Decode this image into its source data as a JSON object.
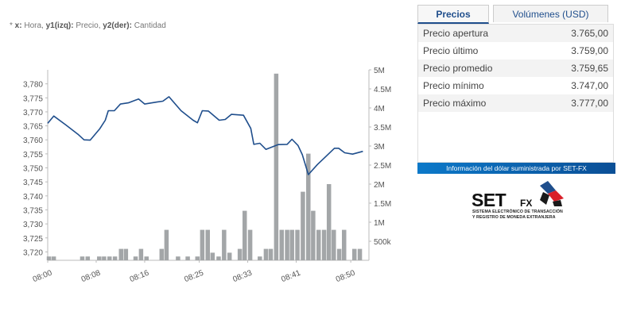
{
  "legend": {
    "prefix": "* ",
    "x_key": "x:",
    "x_text": " Hora, ",
    "y1_key": "y1(izq):",
    "y1_text": " Precio, ",
    "y2_key": "y2(der):",
    "y2_text": " Cantidad"
  },
  "tabs": {
    "precios": "Precios",
    "volumenes": "Volúmenes (USD)"
  },
  "prices": [
    {
      "label": "Precio apertura",
      "value": "3.765,00"
    },
    {
      "label": "Precio último",
      "value": "3.759,00"
    },
    {
      "label": "Precio promedio",
      "value": "3.759,65"
    },
    {
      "label": "Precio mínimo",
      "value": "3.747,00"
    },
    {
      "label": "Precio máximo",
      "value": "3.777,00"
    }
  ],
  "info_bar": "Información del dólar suministrada por SET-FX",
  "logo": {
    "set": "SET",
    "fx": "FX",
    "line1": "SISTEMA ELECTRÓNICO DE TRANSACCIÓN",
    "line2": "Y REGISTRO DE MONEDA EXTRANJERA"
  },
  "colors": {
    "price_line": "#1f4e8c",
    "volume_bar": "#a3a6a8",
    "accent": "#1f4e8c",
    "info_bar": "#0c5ea8"
  },
  "chart_data": {
    "type": "line+bar",
    "x_tick_labels": [
      "08:00",
      "08:08",
      "08:16",
      "08:25",
      "08:33",
      "08:41",
      "08:50"
    ],
    "x_range_minutes": [
      0,
      53
    ],
    "y1": {
      "ylim": [
        3717,
        3785
      ],
      "tick_values": [
        3720,
        3725,
        3730,
        3735,
        3740,
        3745,
        3750,
        3755,
        3760,
        3765,
        3770,
        3775,
        3780
      ],
      "tick_labels": [
        "3,720",
        "3,725",
        "3,730",
        "3,735",
        "3,740",
        "3,745",
        "3,750",
        "3,755",
        "3,760",
        "3,765",
        "3,770",
        "3,775",
        "3,780"
      ]
    },
    "y2": {
      "ylim": [
        0,
        5000000
      ],
      "tick_values": [
        500000,
        1000000,
        1500000,
        2000000,
        2500000,
        3000000,
        3500000,
        4000000,
        4500000,
        5000000
      ],
      "tick_labels": [
        "500k",
        "1M",
        "1.5M",
        "2M",
        "2.5M",
        "3M",
        "3.5M",
        "4M",
        "4.5M",
        "5M"
      ]
    },
    "price_series": [
      [
        0,
        3765.9
      ],
      [
        1,
        3768.5
      ],
      [
        3,
        3765.3
      ],
      [
        5,
        3762
      ],
      [
        6,
        3760
      ],
      [
        7,
        3759.9
      ],
      [
        8.6,
        3764
      ],
      [
        9.5,
        3767
      ],
      [
        10,
        3770.4
      ],
      [
        11,
        3770.4
      ],
      [
        12,
        3772.8
      ],
      [
        13.3,
        3773.2
      ],
      [
        15,
        3774.6
      ],
      [
        16,
        3772.8
      ],
      [
        18,
        3773.5
      ],
      [
        19,
        3773.8
      ],
      [
        20,
        3775.4
      ],
      [
        22,
        3770.4
      ],
      [
        24,
        3767
      ],
      [
        24.7,
        3766.1
      ],
      [
        25.5,
        3770.4
      ],
      [
        26.5,
        3770.3
      ],
      [
        28.3,
        3767
      ],
      [
        29.3,
        3767.3
      ],
      [
        30.3,
        3769.1
      ],
      [
        32.3,
        3768.8
      ],
      [
        33.5,
        3764.1
      ],
      [
        34,
        3758.4
      ],
      [
        35,
        3758.8
      ],
      [
        36,
        3756.6
      ],
      [
        38,
        3758.3
      ],
      [
        39.5,
        3758.4
      ],
      [
        40.3,
        3760.2
      ],
      [
        41.3,
        3758
      ],
      [
        42,
        3754.7
      ],
      [
        43,
        3747.6
      ],
      [
        44.5,
        3751.2
      ],
      [
        46,
        3754.3
      ],
      [
        47.3,
        3757
      ],
      [
        48,
        3757
      ],
      [
        49,
        3755.4
      ],
      [
        50.3,
        3754.9
      ],
      [
        52,
        3755.9
      ]
    ],
    "volume_series": [
      [
        0.2,
        100000
      ],
      [
        1.0,
        100000
      ],
      [
        5.7,
        100000
      ],
      [
        6.6,
        100000
      ],
      [
        8.5,
        100000
      ],
      [
        9.3,
        100000
      ],
      [
        10.2,
        100000
      ],
      [
        11.1,
        100000
      ],
      [
        12.1,
        300000
      ],
      [
        12.9,
        300000
      ],
      [
        14.5,
        100000
      ],
      [
        15.4,
        300000
      ],
      [
        16.3,
        100000
      ],
      [
        18.8,
        300000
      ],
      [
        19.6,
        800000
      ],
      [
        21.5,
        100000
      ],
      [
        23.1,
        100000
      ],
      [
        24.7,
        100000
      ],
      [
        25.5,
        800000
      ],
      [
        26.4,
        800000
      ],
      [
        27.2,
        200000
      ],
      [
        28.2,
        100000
      ],
      [
        29.1,
        800000
      ],
      [
        30.0,
        200000
      ],
      [
        31.7,
        300000
      ],
      [
        32.5,
        1300000
      ],
      [
        33.4,
        800000
      ],
      [
        35.0,
        100000
      ],
      [
        36.0,
        300000
      ],
      [
        36.8,
        300000
      ],
      [
        37.7,
        4900000
      ],
      [
        38.6,
        800000
      ],
      [
        39.5,
        800000
      ],
      [
        40.3,
        800000
      ],
      [
        41.2,
        800000
      ],
      [
        42.1,
        1800000
      ],
      [
        43.0,
        2800000
      ],
      [
        43.8,
        1300000
      ],
      [
        44.7,
        800000
      ],
      [
        45.6,
        800000
      ],
      [
        46.4,
        2000000
      ],
      [
        47.2,
        800000
      ],
      [
        48.1,
        300000
      ],
      [
        48.9,
        800000
      ],
      [
        50.6,
        300000
      ],
      [
        51.5,
        300000
      ]
    ]
  }
}
